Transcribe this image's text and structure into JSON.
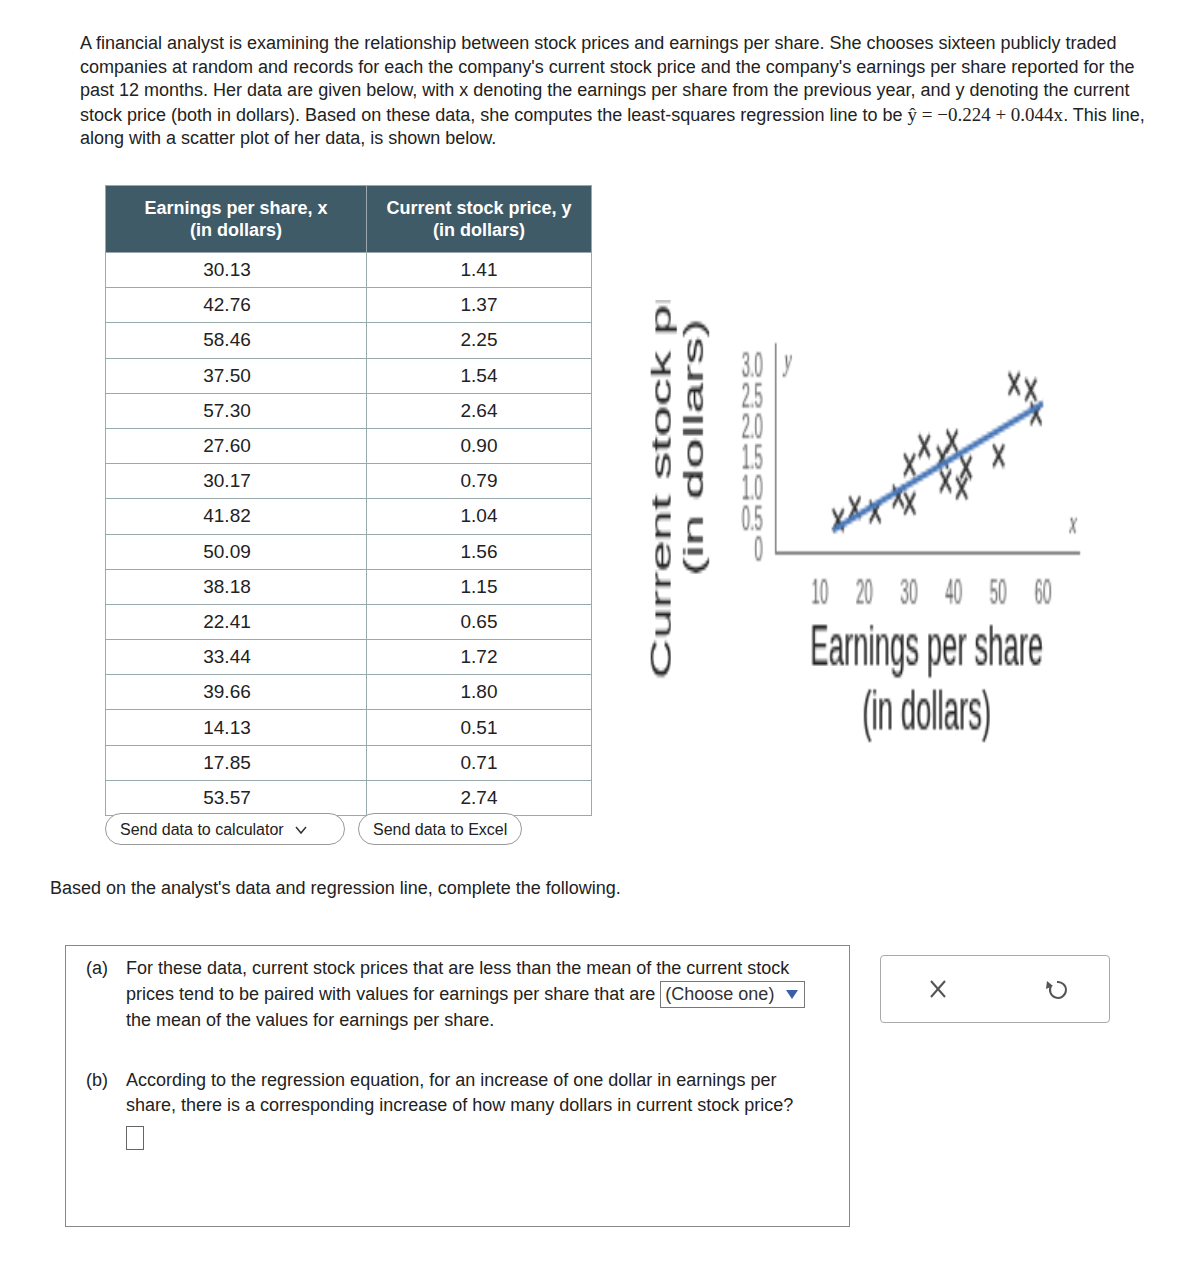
{
  "problem": {
    "intro_before": "A financial analyst is examining the relationship between stock prices and earnings per share. She chooses sixteen publicly traded companies at random and records for each the company's current stock price and the company's earnings per share reported for the past 12 months. Her data are given below, with x denoting the earnings per share from the previous year, and y denoting the current stock price (both in dollars). Based on these data, she computes the least-squares regression line to be",
    "equation": "ŷ = −0.224 + 0.044x",
    "intro_after": ". This line, along with a scatter plot of her data, is shown below."
  },
  "table": {
    "header": [
      "Earnings per share, x\n(in dollars)",
      "Current stock price, y\n(in dollars)"
    ],
    "rows": [
      [
        "30.13",
        "1.41"
      ],
      [
        "42.76",
        "1.37"
      ],
      [
        "58.46",
        "2.25"
      ],
      [
        "37.50",
        "1.54"
      ],
      [
        "57.30",
        "2.64"
      ],
      [
        "27.60",
        "0.90"
      ],
      [
        "30.17",
        "0.79"
      ],
      [
        "41.82",
        "1.04"
      ],
      [
        "50.09",
        "1.56"
      ],
      [
        "38.18",
        "1.15"
      ],
      [
        "22.41",
        "0.65"
      ],
      [
        "33.44",
        "1.72"
      ],
      [
        "39.66",
        "1.80"
      ],
      [
        "14.13",
        "0.51"
      ],
      [
        "17.85",
        "0.71"
      ],
      [
        "53.57",
        "2.74"
      ]
    ]
  },
  "buttons": [
    "Send data to calculator",
    "Send data to Excel"
  ],
  "chart_data": {
    "type": "scatter",
    "x_label": [
      "Earnings per share",
      "(in dollars)"
    ],
    "y_label": [
      "Current stock price",
      "(in dollars)"
    ],
    "x_axis_letter": "x",
    "y_axis_letter": "y",
    "x": [
      30.13,
      42.76,
      58.46,
      37.5,
      57.3,
      27.6,
      30.17,
      41.82,
      50.09,
      38.18,
      22.41,
      33.44,
      39.66,
      14.13,
      17.85,
      53.57
    ],
    "values": [
      1.41,
      1.37,
      2.25,
      1.54,
      2.64,
      0.9,
      0.79,
      1.04,
      1.56,
      1.15,
      0.65,
      1.72,
      1.8,
      0.51,
      0.71,
      2.74
    ],
    "color": "#333333",
    "marker": "x",
    "regression_line": {
      "x": [
        13,
        60
      ],
      "y": [
        0.348,
        2.416
      ],
      "color": "#4a78b8"
    },
    "xlim": [
      0,
      68
    ],
    "xticks": [
      10,
      20,
      30,
      40,
      50,
      60
    ],
    "ylim": [
      0,
      3.4
    ],
    "yticks": [
      0,
      0.5,
      1,
      1.5,
      2,
      2.5,
      3
    ],
    "grid": false
  },
  "footer": "Based on the analyst's data and regression line, complete the following.",
  "questions": [
    {
      "label": "(a)",
      "before": "For these data, current stock prices that are less than the mean of the current stock prices tend to be paired with values for earnings per share that are",
      "select": "(Choose one)",
      "after": "the mean of the values for earnings per share."
    },
    {
      "label": "(b)",
      "before": "According to the regression equation, for an increase of one dollar in earnings per share, there is a corresponding increase of how many dollars in current stock price?"
    }
  ]
}
